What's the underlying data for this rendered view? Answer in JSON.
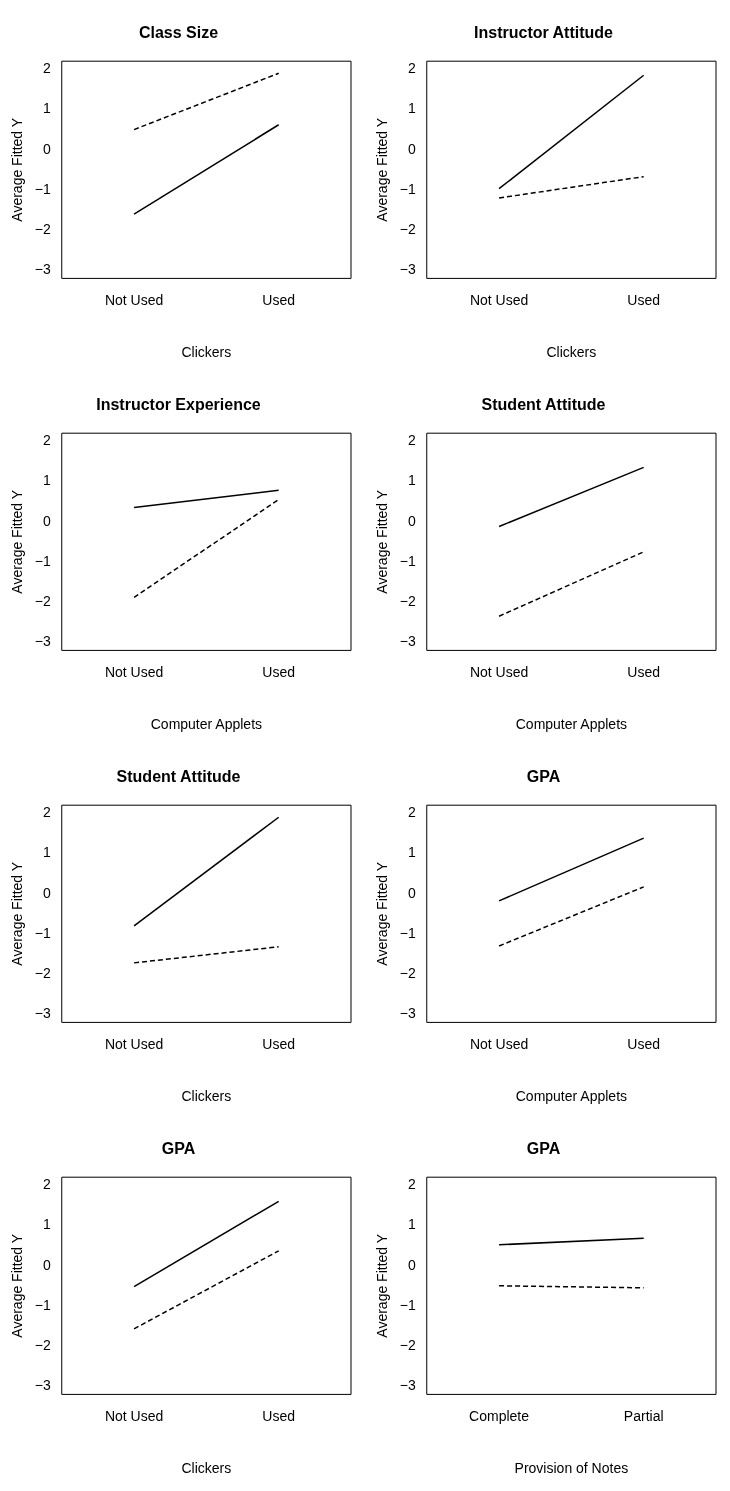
{
  "chart_data": [
    {
      "type": "line",
      "title": "Class Size",
      "xlabel": "Clickers",
      "ylabel": "Average Fitted Y",
      "categories": [
        "Not Used",
        "Used"
      ],
      "marker": "none",
      "ylim": [
        -3.2,
        2.2
      ],
      "yticks": [
        {
          "value": -3,
          "label": "−3"
        },
        {
          "value": -2,
          "label": "−2"
        },
        {
          "value": -1,
          "label": "−1"
        },
        0,
        1,
        2
      ],
      "series": [
        {
          "color": "#000000",
          "line_style": "solid",
          "values": [
            -1.6,
            0.62
          ]
        },
        {
          "color": "#000000",
          "line_style": "dashed",
          "values": [
            0.5,
            1.9
          ]
        }
      ]
    },
    {
      "type": "line",
      "title": "Instructor Attitude",
      "xlabel": "Clickers",
      "ylabel": "Average Fitted Y",
      "categories": [
        "Not Used",
        "Used"
      ],
      "marker": "none",
      "ylim": [
        -3.2,
        2.2
      ],
      "yticks": [
        {
          "value": -3,
          "label": "−3"
        },
        {
          "value": -2,
          "label": "−2"
        },
        {
          "value": -1,
          "label": "−1"
        },
        0,
        1,
        2
      ],
      "series": [
        {
          "color": "#000000",
          "line_style": "solid",
          "values": [
            -0.97,
            1.85
          ]
        },
        {
          "color": "#000000",
          "line_style": "dashed",
          "values": [
            -1.2,
            -0.67
          ]
        }
      ]
    },
    {
      "type": "line",
      "title": "Instructor Experience",
      "xlabel": "Computer Applets",
      "ylabel": "Average Fitted Y",
      "categories": [
        "Not Used",
        "Used"
      ],
      "marker": "none",
      "ylim": [
        -3.2,
        2.2
      ],
      "yticks": [
        {
          "value": -3,
          "label": "−3"
        },
        {
          "value": -2,
          "label": "−2"
        },
        {
          "value": -1,
          "label": "−1"
        },
        0,
        1,
        2
      ],
      "series": [
        {
          "color": "#000000",
          "line_style": "solid",
          "values": [
            0.35,
            0.78
          ]
        },
        {
          "color": "#000000",
          "line_style": "dashed",
          "values": [
            -1.88,
            0.55
          ]
        }
      ]
    },
    {
      "type": "line",
      "title": "Student Attitude",
      "xlabel": "Computer Applets",
      "ylabel": "Average Fitted Y",
      "categories": [
        "Not Used",
        "Used"
      ],
      "marker": "none",
      "ylim": [
        -3.2,
        2.2
      ],
      "yticks": [
        {
          "value": -3,
          "label": "−3"
        },
        {
          "value": -2,
          "label": "−2"
        },
        {
          "value": -1,
          "label": "−1"
        },
        0,
        1,
        2
      ],
      "series": [
        {
          "color": "#000000",
          "line_style": "solid",
          "values": [
            -0.12,
            1.35
          ]
        },
        {
          "color": "#000000",
          "line_style": "dashed",
          "values": [
            -2.35,
            -0.75
          ]
        }
      ]
    },
    {
      "type": "line",
      "title": "Student Attitude",
      "xlabel": "Clickers",
      "ylabel": "Average Fitted Y",
      "categories": [
        "Not Used",
        "Used"
      ],
      "marker": "none",
      "ylim": [
        -3.2,
        2.2
      ],
      "yticks": [
        {
          "value": -3,
          "label": "−3"
        },
        {
          "value": -2,
          "label": "−2"
        },
        {
          "value": -1,
          "label": "−1"
        },
        0,
        1,
        2
      ],
      "series": [
        {
          "color": "#000000",
          "line_style": "solid",
          "values": [
            -0.8,
            1.9
          ]
        },
        {
          "color": "#000000",
          "line_style": "dashed",
          "values": [
            -1.72,
            -1.32
          ]
        }
      ]
    },
    {
      "type": "line",
      "title": "GPA",
      "xlabel": "Computer Applets",
      "ylabel": "Average Fitted Y",
      "categories": [
        "Not Used",
        "Used"
      ],
      "marker": "none",
      "ylim": [
        -3.2,
        2.2
      ],
      "yticks": [
        {
          "value": -3,
          "label": "−3"
        },
        {
          "value": -2,
          "label": "−2"
        },
        {
          "value": -1,
          "label": "−1"
        },
        0,
        1,
        2
      ],
      "series": [
        {
          "color": "#000000",
          "line_style": "solid",
          "values": [
            -0.18,
            1.38
          ]
        },
        {
          "color": "#000000",
          "line_style": "dashed",
          "values": [
            -1.3,
            0.17
          ]
        }
      ]
    },
    {
      "type": "line",
      "title": "GPA",
      "xlabel": "Clickers",
      "ylabel": "Average Fitted Y",
      "categories": [
        "Not Used",
        "Used"
      ],
      "marker": "none",
      "ylim": [
        -3.2,
        2.2
      ],
      "yticks": [
        {
          "value": -3,
          "label": "−3"
        },
        {
          "value": -2,
          "label": "−2"
        },
        {
          "value": -1,
          "label": "−1"
        },
        0,
        1,
        2
      ],
      "series": [
        {
          "color": "#000000",
          "line_style": "solid",
          "values": [
            -0.52,
            1.6
          ]
        },
        {
          "color": "#000000",
          "line_style": "dashed",
          "values": [
            -1.57,
            0.37
          ]
        }
      ]
    },
    {
      "type": "line",
      "title": "GPA",
      "xlabel": "Provision of Notes",
      "ylabel": "Average Fitted Y",
      "categories": [
        "Complete",
        "Partial"
      ],
      "marker": "none",
      "ylim": [
        -3.2,
        2.2
      ],
      "yticks": [
        {
          "value": -3,
          "label": "−3"
        },
        {
          "value": -2,
          "label": "−2"
        },
        {
          "value": -1,
          "label": "−1"
        },
        0,
        1,
        2
      ],
      "series": [
        {
          "color": "#000000",
          "line_style": "solid",
          "values": [
            0.52,
            0.68
          ]
        },
        {
          "color": "#000000",
          "line_style": "dashed",
          "values": [
            -0.5,
            -0.55
          ]
        }
      ]
    }
  ]
}
